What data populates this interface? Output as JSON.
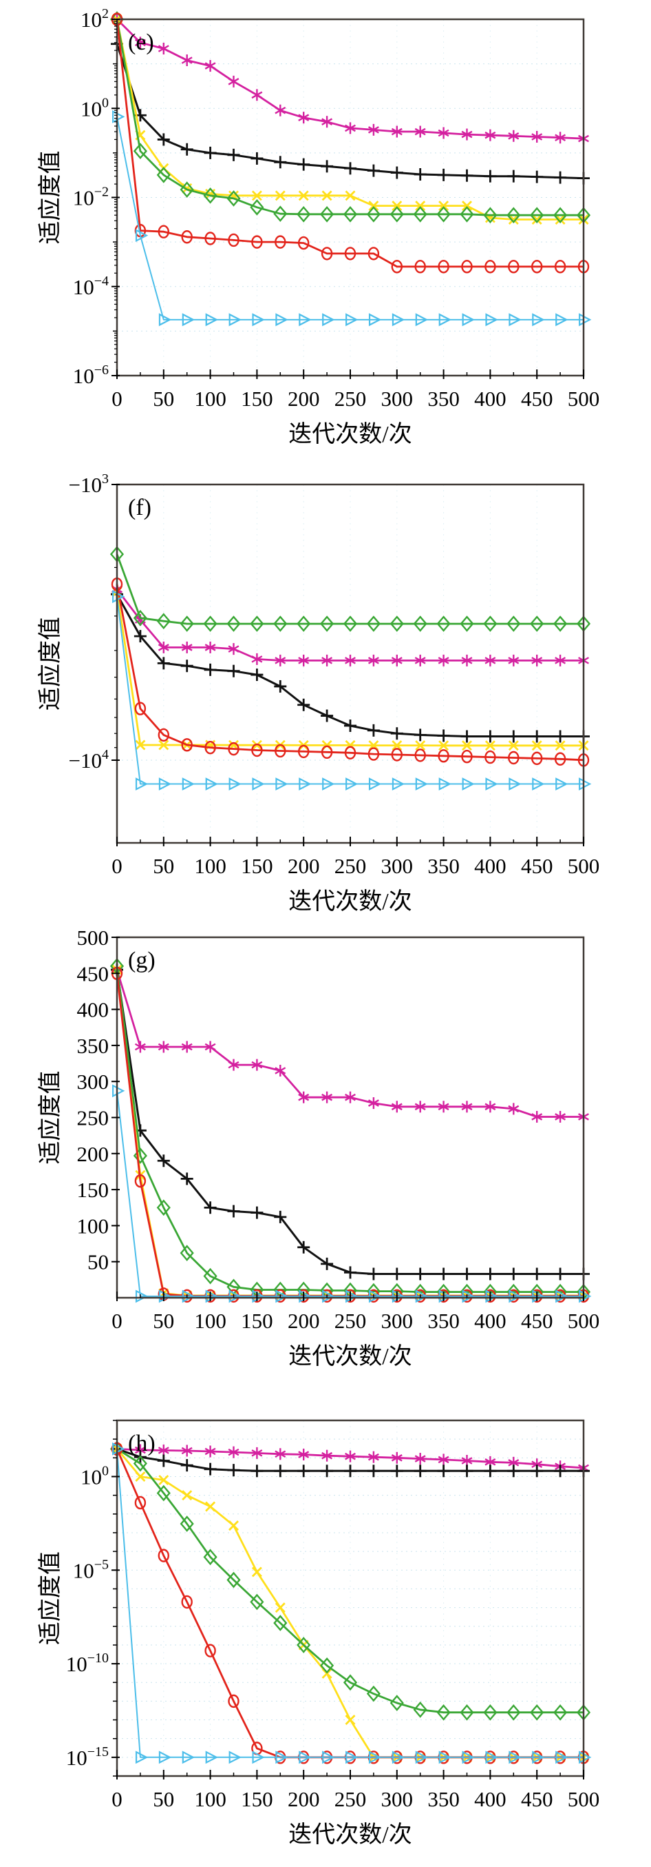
{
  "figure": {
    "xlabel": "迭代次数/次",
    "ylabel": "适应度值",
    "border_color": "#403a36",
    "grid_h_color": "#c9e4ee",
    "grid_v_color": "#e2f1f6",
    "palette": {
      "magenta": "#d4219f",
      "black": "#111111",
      "yellow": "#ffdf1b",
      "green": "#3aa735",
      "red": "#e3241b",
      "cyan": "#4cbeea"
    }
  },
  "chart_data": [
    {
      "type": "line",
      "title": "(e)",
      "xlabel": "迭代次数/次",
      "ylabel": "适应度值",
      "xlim": [
        0,
        500
      ],
      "xticks": [
        0,
        50,
        100,
        150,
        200,
        250,
        300,
        350,
        400,
        450,
        500
      ],
      "x_step": 25,
      "yscale": "log",
      "ylim": [
        2,
        -6
      ],
      "log_minor": true,
      "grid": true,
      "yticks": [
        {
          "t": 2,
          "base": "10",
          "exp": "2"
        },
        {
          "t": 0,
          "base": "10",
          "exp": "0"
        },
        {
          "t": -2,
          "base": "10",
          "exp": "−2"
        },
        {
          "t": -4,
          "base": "10",
          "exp": "−4"
        },
        {
          "t": -6,
          "base": "10",
          "exp": "−6"
        }
      ],
      "series": [
        {
          "name": "magenta-asterisk",
          "color": "#d4219f",
          "marker": "asterisk",
          "lw": 2.8,
          "values": [
            100,
            30,
            22,
            12,
            9,
            4,
            2,
            0.9,
            0.62,
            0.5,
            0.36,
            0.33,
            0.3,
            0.3,
            0.28,
            0.26,
            0.25,
            0.24,
            0.23,
            0.22,
            0.21
          ]
        },
        {
          "name": "black-plus",
          "color": "#111111",
          "marker": "plus",
          "lw": 3,
          "values": [
            28,
            0.7,
            0.2,
            0.12,
            0.1,
            0.09,
            0.075,
            0.062,
            0.055,
            0.05,
            0.045,
            0.04,
            0.036,
            0.033,
            0.032,
            0.031,
            0.03,
            0.03,
            0.029,
            0.028,
            0.027
          ]
        },
        {
          "name": "yellow-cross",
          "color": "#ffdf1b",
          "marker": "cross",
          "lw": 2.8,
          "values": [
            100,
            0.25,
            0.045,
            0.016,
            0.012,
            0.011,
            0.011,
            0.011,
            0.011,
            0.011,
            0.011,
            0.0065,
            0.0065,
            0.0065,
            0.0065,
            0.0065,
            0.0035,
            0.0032,
            0.0032,
            0.0032,
            0.0032
          ]
        },
        {
          "name": "green-diamond",
          "color": "#3aa735",
          "marker": "diamond",
          "lw": 2.8,
          "values": [
            100,
            0.11,
            0.032,
            0.015,
            0.011,
            0.0095,
            0.006,
            0.0043,
            0.0042,
            0.0042,
            0.0042,
            0.0042,
            0.0042,
            0.0042,
            0.0042,
            0.0042,
            0.004,
            0.004,
            0.004,
            0.004,
            0.004
          ]
        },
        {
          "name": "red-circle",
          "color": "#e3241b",
          "marker": "circle",
          "lw": 2.8,
          "values": [
            100,
            0.0018,
            0.0017,
            0.0013,
            0.0012,
            0.0011,
            0.001,
            0.001,
            0.00095,
            0.00055,
            0.00055,
            0.00055,
            0.00028,
            0.00028,
            0.00028,
            0.00028,
            0.00028,
            0.00028,
            0.00028,
            0.00028,
            0.00028
          ]
        },
        {
          "name": "cyan-triangle",
          "color": "#4cbeea",
          "marker": "triangle-right",
          "lw": 2,
          "values": [
            0.65,
            0.0014,
            1.8e-05,
            1.8e-05,
            1.8e-05,
            1.8e-05,
            1.8e-05,
            1.8e-05,
            1.8e-05,
            1.8e-05,
            1.8e-05,
            1.8e-05,
            1.8e-05,
            1.8e-05,
            1.8e-05,
            1.8e-05,
            1.8e-05,
            1.8e-05,
            1.8e-05,
            1.8e-05,
            1.8e-05
          ]
        }
      ]
    },
    {
      "type": "line",
      "title": "(f)",
      "xlabel": "迭代次数/次",
      "ylabel": "适应度值",
      "xlim": [
        0,
        500
      ],
      "xticks": [
        0,
        50,
        100,
        150,
        200,
        250,
        300,
        350,
        400,
        450,
        500
      ],
      "x_step": 25,
      "yscale": "neglog",
      "ylim": [
        3,
        4.3
      ],
      "log_minor": true,
      "grid": true,
      "yticks": [
        {
          "t": 3,
          "base": "−10",
          "exp": "3"
        },
        {
          "t": 4,
          "base": "−10",
          "exp": "4"
        }
      ],
      "series": [
        {
          "name": "magenta-asterisk",
          "color": "#d4219f",
          "marker": "asterisk",
          "lw": 2.8,
          "values": [
            -2400,
            -3100,
            -3900,
            -3900,
            -3900,
            -3950,
            -4300,
            -4350,
            -4350,
            -4350,
            -4350,
            -4350,
            -4350,
            -4350,
            -4350,
            -4350,
            -4350,
            -4350,
            -4350,
            -4350,
            -4350
          ]
        },
        {
          "name": "black-plus",
          "color": "#111111",
          "marker": "plus",
          "lw": 3,
          "values": [
            -2500,
            -3550,
            -4450,
            -4550,
            -4700,
            -4750,
            -4900,
            -5400,
            -6300,
            -6900,
            -7500,
            -7800,
            -8000,
            -8100,
            -8150,
            -8200,
            -8200,
            -8200,
            -8200,
            -8200,
            -8200
          ]
        },
        {
          "name": "yellow-cross",
          "color": "#ffdf1b",
          "marker": "cross",
          "lw": 2.8,
          "values": [
            -2450,
            -8810,
            -8810,
            -8810,
            -8810,
            -8820,
            -8820,
            -8820,
            -8830,
            -8830,
            -8830,
            -8840,
            -8840,
            -8840,
            -8850,
            -8850,
            -8850,
            -8850,
            -8850,
            -8850,
            -8850
          ]
        },
        {
          "name": "green-diamond",
          "color": "#3aa735",
          "marker": "diamond",
          "lw": 2.8,
          "values": [
            -1790,
            -3050,
            -3130,
            -3200,
            -3200,
            -3200,
            -3200,
            -3200,
            -3200,
            -3200,
            -3200,
            -3200,
            -3200,
            -3200,
            -3200,
            -3200,
            -3200,
            -3200,
            -3200,
            -3200,
            -3200
          ]
        },
        {
          "name": "red-circle",
          "color": "#e3241b",
          "marker": "circle",
          "lw": 2.8,
          "values": [
            -2300,
            -6500,
            -8100,
            -8800,
            -9000,
            -9100,
            -9200,
            -9250,
            -9300,
            -9350,
            -9400,
            -9500,
            -9550,
            -9600,
            -9650,
            -9700,
            -9750,
            -9800,
            -9850,
            -9900,
            -9990
          ]
        },
        {
          "name": "cyan-triangle",
          "color": "#4cbeea",
          "marker": "triangle-right",
          "lw": 2,
          "values": [
            -2550,
            -12200,
            -12200,
            -12200,
            -12200,
            -12200,
            -12200,
            -12200,
            -12200,
            -12200,
            -12200,
            -12200,
            -12200,
            -12200,
            -12200,
            -12200,
            -12200,
            -12200,
            -12200,
            -12200,
            -12200
          ]
        }
      ]
    },
    {
      "type": "line",
      "title": "(g)",
      "xlabel": "迭代次数/次",
      "ylabel": "适应度值",
      "xlim": [
        0,
        500
      ],
      "xticks": [
        0,
        50,
        100,
        150,
        200,
        250,
        300,
        350,
        400,
        450,
        500
      ],
      "x_step": 25,
      "yscale": "linear",
      "ylim": [
        500,
        0
      ],
      "log_minor": false,
      "grid": false,
      "yticks": [
        {
          "t": 500,
          "label": "500"
        },
        {
          "t": 450,
          "label": "450"
        },
        {
          "t": 400,
          "label": "400"
        },
        {
          "t": 350,
          "label": "350"
        },
        {
          "t": 300,
          "label": "300"
        },
        {
          "t": 250,
          "label": "250"
        },
        {
          "t": 200,
          "label": "200"
        },
        {
          "t": 150,
          "label": "150"
        },
        {
          "t": 100,
          "label": "100"
        },
        {
          "t": 50,
          "label": "50"
        }
      ],
      "series": [
        {
          "name": "magenta-asterisk",
          "color": "#d4219f",
          "marker": "asterisk",
          "lw": 2.8,
          "values": [
            455,
            348,
            348,
            348,
            348,
            323,
            323,
            315,
            278,
            278,
            278,
            270,
            265,
            265,
            265,
            265,
            265,
            262,
            251,
            251,
            251
          ]
        },
        {
          "name": "black-plus",
          "color": "#111111",
          "marker": "plus",
          "lw": 3,
          "values": [
            455,
            232,
            190,
            165,
            125,
            120,
            118,
            112,
            70,
            47,
            35,
            33,
            33,
            33,
            33,
            33,
            33,
            33,
            33,
            33,
            33
          ]
        },
        {
          "name": "yellow-cross",
          "color": "#ffdf1b",
          "marker": "cross",
          "lw": 2.8,
          "values": [
            455,
            170,
            6,
            3,
            3,
            3,
            3,
            3,
            3,
            3,
            3,
            3,
            3,
            3,
            3,
            3,
            3,
            3,
            3,
            3,
            3
          ]
        },
        {
          "name": "green-diamond",
          "color": "#3aa735",
          "marker": "diamond",
          "lw": 2.8,
          "values": [
            460,
            197,
            125,
            62,
            30,
            15,
            11,
            11,
            11,
            10,
            10,
            9,
            9,
            8,
            8,
            8,
            8,
            8,
            8,
            8,
            8
          ]
        },
        {
          "name": "red-circle",
          "color": "#e3241b",
          "marker": "circle",
          "lw": 2.8,
          "values": [
            450,
            162,
            5,
            2.5,
            2.5,
            2.5,
            2.5,
            2.5,
            2.5,
            2.5,
            2.5,
            2.5,
            2.5,
            2.5,
            2.5,
            2.5,
            2.5,
            2.5,
            2.5,
            2.5,
            2.5
          ]
        },
        {
          "name": "cyan-triangle",
          "color": "#4cbeea",
          "marker": "triangle-right",
          "lw": 2,
          "values": [
            287,
            2,
            2,
            2,
            2,
            2,
            2,
            2,
            2,
            2,
            2,
            2,
            2,
            2,
            2,
            2,
            2,
            2,
            2,
            2,
            2
          ]
        }
      ]
    },
    {
      "type": "line",
      "title": "(h)",
      "xlabel": "迭代次数/次",
      "ylabel": "适应度值",
      "xlim": [
        0,
        500
      ],
      "xticks": [
        0,
        50,
        100,
        150,
        200,
        250,
        300,
        350,
        400,
        450,
        500
      ],
      "x_step": 25,
      "yscale": "log",
      "ylim": [
        3,
        -16
      ],
      "log_minor": false,
      "grid": true,
      "yticks": [
        {
          "t": 0,
          "base": "10",
          "exp": "0"
        },
        {
          "t": -5,
          "base": "10",
          "exp": "−5"
        },
        {
          "t": -10,
          "base": "10",
          "exp": "−10"
        },
        {
          "t": -15,
          "base": "10",
          "exp": "−15"
        }
      ],
      "series": [
        {
          "name": "magenta-asterisk",
          "color": "#d4219f",
          "marker": "asterisk",
          "lw": 2.8,
          "values": [
            30,
            26,
            25,
            24,
            22,
            20,
            18,
            16,
            15,
            13,
            12,
            11,
            10,
            9,
            8,
            7,
            6,
            5.5,
            4.5,
            3.5,
            2.9
          ]
        },
        {
          "name": "black-plus",
          "color": "#111111",
          "marker": "plus",
          "lw": 3,
          "values": [
            30,
            11,
            7,
            4,
            2.5,
            2.2,
            2,
            2,
            2,
            2,
            2,
            2,
            2,
            2,
            2,
            2,
            2,
            2,
            2,
            2,
            2
          ]
        },
        {
          "name": "yellow-cross",
          "color": "#ffdf1b",
          "marker": "cross",
          "lw": 2.8,
          "values": [
            30,
            1.0,
            0.65,
            0.1,
            0.025,
            0.0024,
            8e-06,
            1e-07,
            1e-09,
            3e-11,
            1e-13,
            1e-15,
            1e-15,
            1e-15,
            1e-15,
            1e-15,
            1e-15,
            1e-15,
            1e-15,
            1e-15,
            1e-15
          ]
        },
        {
          "name": "green-diamond",
          "color": "#3aa735",
          "marker": "diamond",
          "lw": 2.8,
          "values": [
            30,
            5,
            0.13,
            0.003,
            5e-05,
            3e-06,
            2e-07,
            1.5e-08,
            1e-09,
            8e-11,
            1e-11,
            2.5e-12,
            8e-13,
            3.5e-13,
            2.5e-13,
            2.5e-13,
            2.5e-13,
            2.5e-13,
            2.5e-13,
            2.5e-13,
            2.5e-13
          ]
        },
        {
          "name": "red-circle",
          "color": "#e3241b",
          "marker": "circle",
          "lw": 2.8,
          "values": [
            30,
            0.04,
            6e-05,
            2e-07,
            5e-10,
            1e-12,
            3e-15,
            1e-15,
            1e-15,
            1e-15,
            1e-15,
            1e-15,
            1e-15,
            1e-15,
            1e-15,
            1e-15,
            1e-15,
            1e-15,
            1e-15,
            1e-15,
            1e-15
          ]
        },
        {
          "name": "cyan-triangle",
          "color": "#4cbeea",
          "marker": "triangle-right",
          "lw": 2,
          "values": [
            30,
            1e-15,
            1e-15,
            1e-15,
            1e-15,
            1e-15,
            1e-15,
            1e-15,
            1e-15,
            1e-15,
            1e-15,
            1e-15,
            1e-15,
            1e-15,
            1e-15,
            1e-15,
            1e-15,
            1e-15,
            1e-15,
            1e-15,
            1e-15
          ]
        }
      ]
    }
  ]
}
